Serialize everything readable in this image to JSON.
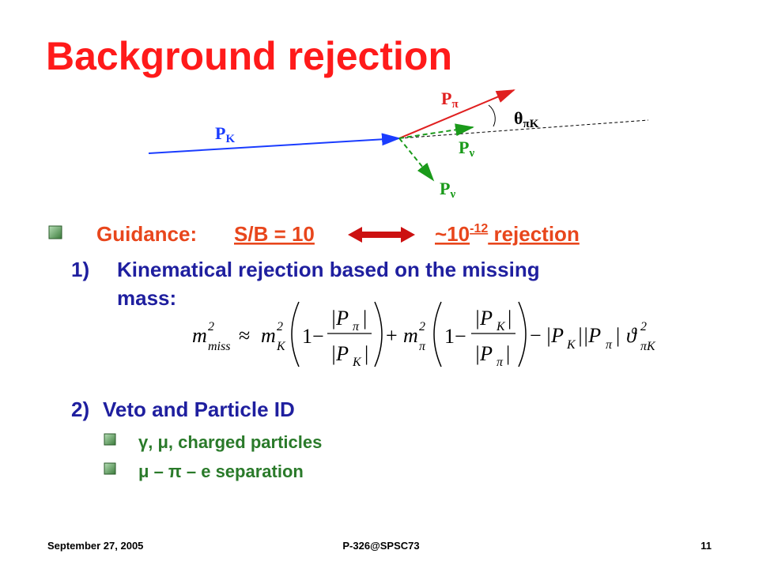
{
  "title": "Background rejection",
  "diagram": {
    "p_k": "P",
    "p_k_sub": "K",
    "p_pi": "P",
    "p_pi_sub": "π",
    "p_nu_1": "P",
    "p_nu_1_sub": "ν",
    "p_nu_2": "P",
    "p_nu_2_sub": "ν",
    "theta": "θ",
    "theta_sub": "πK"
  },
  "guidance": {
    "label": "Guidance:",
    "ratio": "S/B = 10",
    "rejection_base": "~10",
    "rejection_exp": "-12",
    "rejection_word": " rejection"
  },
  "items": [
    {
      "number": "1)",
      "lines": [
        "Kinematical rejection based on the missing",
        "mass:"
      ]
    },
    {
      "number": "2)",
      "lines": [
        "Veto and Particle ID"
      ],
      "subitems": [
        "γ, μ, charged particles",
        "μ – π – e separation"
      ]
    }
  ],
  "formula": [
    "m",
    "2",
    "miss",
    "≈",
    "m",
    "2",
    "K",
    "1−",
    "|P",
    "π",
    "|",
    "|P",
    "K",
    "|",
    "+",
    "m",
    "2",
    "π",
    "1−",
    "|P",
    "K",
    "|",
    "|P",
    "π",
    "|",
    "−",
    "|P",
    "K",
    "||P",
    "π",
    "|",
    "ϑ",
    "2",
    "πK"
  ],
  "footer": {
    "date": "September 27, 2005",
    "center": "P-326@SPSC73",
    "page": "11"
  }
}
